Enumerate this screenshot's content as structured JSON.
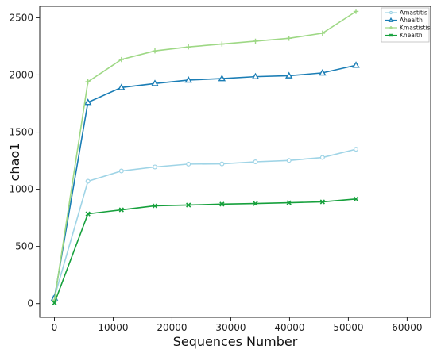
{
  "chart_data": {
    "type": "line",
    "xlabel": "Sequences Number",
    "ylabel": "chao1",
    "xlim": [
      -2500,
      64000
    ],
    "ylim": [
      -120,
      2600
    ],
    "xticks": [
      0,
      10000,
      20000,
      30000,
      40000,
      50000,
      60000
    ],
    "yticks": [
      0,
      500,
      1000,
      1500,
      2000,
      2500
    ],
    "x": [
      0,
      5700,
      11400,
      17100,
      22800,
      28500,
      34200,
      39900,
      45600,
      51300
    ],
    "grid": false,
    "legend_position": "top-right",
    "series": [
      {
        "name": "Amastitis",
        "color": "#9fd4e6",
        "marker": "circle",
        "values": [
          55,
          1070,
          1160,
          1195,
          1220,
          1222,
          1240,
          1252,
          1278,
          1350
        ]
      },
      {
        "name": "Ahealth",
        "color": "#1a7db5",
        "marker": "triangle",
        "values": [
          50,
          1760,
          1890,
          1925,
          1955,
          1968,
          1985,
          1993,
          2018,
          2085
        ]
      },
      {
        "name": "Kmastistis",
        "color": "#9ed885",
        "marker": "plus",
        "values": [
          30,
          1940,
          2135,
          2210,
          2245,
          2270,
          2295,
          2320,
          2365,
          2555
        ]
      },
      {
        "name": "Khealth",
        "color": "#16a03c",
        "marker": "x",
        "values": [
          5,
          785,
          820,
          855,
          862,
          870,
          875,
          882,
          890,
          915
        ]
      }
    ]
  }
}
